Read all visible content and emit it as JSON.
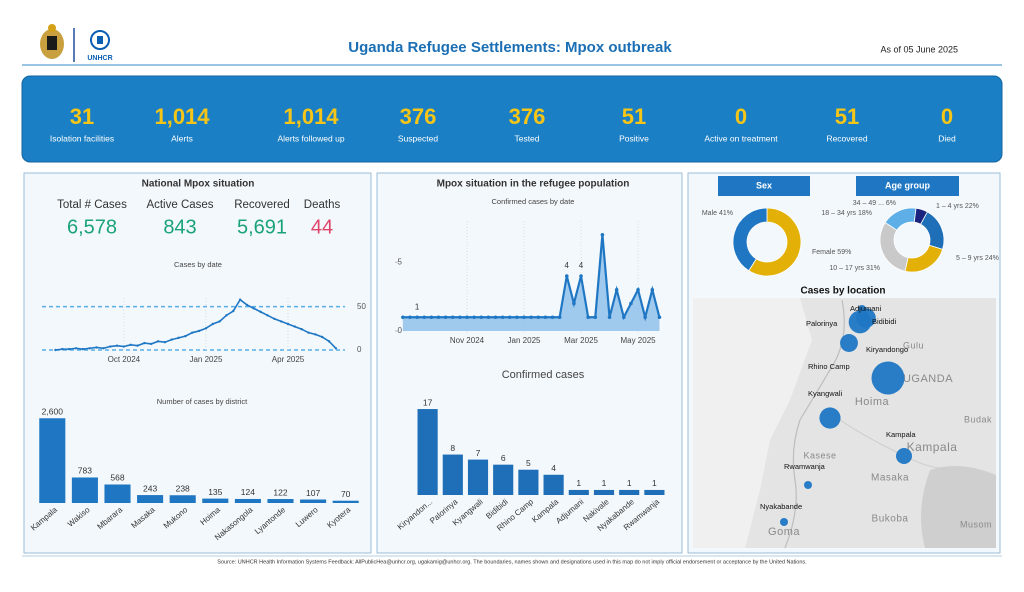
{
  "header": {
    "logo_text": "UNHCR",
    "title": "Uganda Refugee Settlements: Mpox outbreak",
    "date": "As of 05 June 2025"
  },
  "kpis": [
    {
      "value": "31",
      "label": "Isolation facilities"
    },
    {
      "value": "1,014",
      "label": "Alerts"
    },
    {
      "value": "1,014",
      "label": "Alerts followed up"
    },
    {
      "value": "376",
      "label": "Suspected"
    },
    {
      "value": "376",
      "label": "Tested"
    },
    {
      "value": "51",
      "label": "Positive"
    },
    {
      "value": "0",
      "label": "Active on treatment"
    },
    {
      "value": "51",
      "label": "Recovered"
    },
    {
      "value": "0",
      "label": "Died"
    }
  ],
  "national": {
    "title": "National Mpox situation",
    "stats": [
      {
        "label": "Total # Cases",
        "value": "6,578",
        "color": "#1aa37a"
      },
      {
        "label": "Active Cases",
        "value": "843",
        "color": "#1aa37a"
      },
      {
        "label": "Recovered",
        "value": "5,691",
        "color": "#1aa37a"
      },
      {
        "label": "Deaths",
        "value": "44",
        "color": "#e0446a"
      }
    ],
    "cases_by_date": {
      "type": "line",
      "title": "Cases by date",
      "color": "#1f77c4",
      "grid": true,
      "x": [
        7.5,
        7.75,
        8,
        8.25,
        8.5,
        8.75,
        9,
        9.25,
        9.5,
        9.75,
        10,
        10.25,
        10.5,
        10.75,
        11,
        11.25,
        11.5,
        11.75,
        12,
        12.25,
        12.5,
        12.75,
        13,
        13.25,
        13.5,
        13.75,
        14,
        14.25,
        14.5,
        14.75,
        15,
        15.25,
        15.5,
        15.75,
        16,
        16.25,
        16.5,
        16.75,
        17,
        17.25,
        17.5,
        17.75
      ],
      "values": [
        0,
        1,
        1,
        2,
        1,
        2,
        3,
        2,
        4,
        5,
        4,
        6,
        5,
        8,
        7,
        10,
        9,
        12,
        14,
        16,
        20,
        22,
        25,
        30,
        33,
        40,
        45,
        58,
        52,
        48,
        44,
        40,
        36,
        33,
        30,
        27,
        24,
        20,
        18,
        15,
        10,
        2
      ],
      "xlim": [
        7.3,
        17.9
      ],
      "xticks": [
        {
          "value": 10,
          "label": "Oct 2024"
        },
        {
          "value": 13,
          "label": "Jan 2025"
        },
        {
          "value": 16,
          "label": "Apr 2025"
        }
      ],
      "ylim": [
        0,
        60
      ],
      "yticks": [
        0,
        50
      ]
    },
    "by_district": {
      "type": "bar",
      "title": "Number of cases by district",
      "color": "#1f77c4",
      "categories": [
        "Kampala",
        "Wakiso",
        "Mbarara",
        "Masaka",
        "Mukono",
        "Hoima",
        "Nakasongola",
        "Lyantonde",
        "Luwero",
        "Kyotera"
      ],
      "values": [
        2600,
        783,
        568,
        243,
        238,
        135,
        124,
        122,
        107,
        70
      ],
      "value_labels": [
        "2,600",
        "783",
        "568",
        "243",
        "238",
        "135",
        "124",
        "122",
        "107",
        "70"
      ],
      "ylim": [
        0,
        2700
      ]
    }
  },
  "refugee": {
    "title": "Mpox situation in the refugee population",
    "confirmed_by_date": {
      "type": "line",
      "title": "Confirmed cases by date",
      "color": "#1f77c4",
      "area": true,
      "x": [
        8.75,
        9,
        9.25,
        9.5,
        9.75,
        10,
        10.25,
        10.5,
        10.75,
        11,
        11.25,
        11.5,
        11.75,
        12,
        12.25,
        12.5,
        12.75,
        13,
        13.25,
        13.5,
        13.75,
        14,
        14.25,
        14.5,
        14.75,
        15,
        15.25,
        15.5,
        15.75,
        16,
        16.25,
        16.5,
        16.75,
        17,
        17.25,
        17.5,
        17.75
      ],
      "values": [
        1,
        1,
        1,
        1,
        1,
        1,
        1,
        1,
        1,
        1,
        1,
        1,
        1,
        1,
        1,
        1,
        1,
        1,
        1,
        1,
        1,
        1,
        1,
        4,
        2,
        4,
        1,
        1,
        7,
        1,
        3,
        1,
        2,
        3,
        1,
        3,
        1
      ],
      "value_labels": [
        null,
        null,
        "1",
        null,
        null,
        null,
        null,
        null,
        null,
        null,
        null,
        null,
        null,
        null,
        null,
        null,
        null,
        null,
        null,
        null,
        null,
        null,
        null,
        "4",
        null,
        "4",
        null,
        null,
        null,
        null,
        null,
        null,
        null,
        null,
        null,
        null,
        null
      ],
      "xlim": [
        8.58,
        17.84
      ],
      "xticks": [
        {
          "value": 11,
          "label": "Nov 2024"
        },
        {
          "value": 13,
          "label": "Jan 2025"
        },
        {
          "value": 15,
          "label": "Mar 2025"
        },
        {
          "value": 17,
          "label": "May 2025"
        }
      ],
      "ylim": [
        0,
        8
      ],
      "yticks": [
        0,
        5
      ]
    },
    "confirmed_cases": {
      "type": "bar",
      "title": "Confirmed cases",
      "color": "#1f6fb8",
      "categories": [
        "Kiryandon...",
        "Palorinya",
        "Kyangwali",
        "Bidibidi",
        "Rhino Camp",
        "Kampala",
        "Adjumani",
        "Nakivale",
        "Nyakabande",
        "Rwamwanja"
      ],
      "values": [
        17,
        8,
        7,
        6,
        5,
        4,
        1,
        1,
        1,
        1
      ],
      "ylim": [
        0,
        18
      ]
    }
  },
  "demographics": {
    "sex": {
      "type": "pie",
      "title": "Sex",
      "names": [
        "Female",
        "Male"
      ],
      "values": [
        59,
        41
      ],
      "value_labels": [
        "59%",
        "41%"
      ],
      "colors": [
        "#e2b007",
        "#1f77c4"
      ]
    },
    "age": {
      "type": "pie",
      "title": "Age group",
      "names": [
        "1 – 4 yrs",
        "5 – 9 yrs",
        "10 – 17 yrs",
        "18 – 34 yrs",
        "34 – 49 ..."
      ],
      "values": [
        22,
        24,
        31,
        18,
        6
      ],
      "value_labels": [
        "22%",
        "24%",
        "31%",
        "18%",
        "6%"
      ],
      "colors": [
        "#1f6fb8",
        "#e2b007",
        "#c9c9c9",
        "#5eaee8",
        "#1a237e"
      ]
    }
  },
  "map": {
    "title": "Cases by location",
    "base_labels": [
      "Gulu",
      "UGANDA",
      "Hoima",
      "Kasese",
      "Masaka",
      "Kampala",
      "Budak",
      "Bukoba",
      "Goma",
      "Musom"
    ],
    "locations": [
      {
        "name": "Kiryandongo",
        "cases": 17
      },
      {
        "name": "Palorinya",
        "cases": 8
      },
      {
        "name": "Kyangwali",
        "cases": 7
      },
      {
        "name": "Bidibidi",
        "cases": 6
      },
      {
        "name": "Rhino Camp",
        "cases": 5
      },
      {
        "name": "Kampala",
        "cases": 4
      },
      {
        "name": "Adjumani",
        "cases": 1
      },
      {
        "name": "Rwamwanja",
        "cases": 1
      },
      {
        "name": "Nyakabande",
        "cases": 1
      }
    ]
  },
  "footer": "Source: UNHCR Health Information Systems    Feedback: AllPublicHea@unhcr.org, ugakamig@unhcr.org.   The boundaries, names shown and designations used in this map do not imply official endorsement or acceptance by the United Nations."
}
